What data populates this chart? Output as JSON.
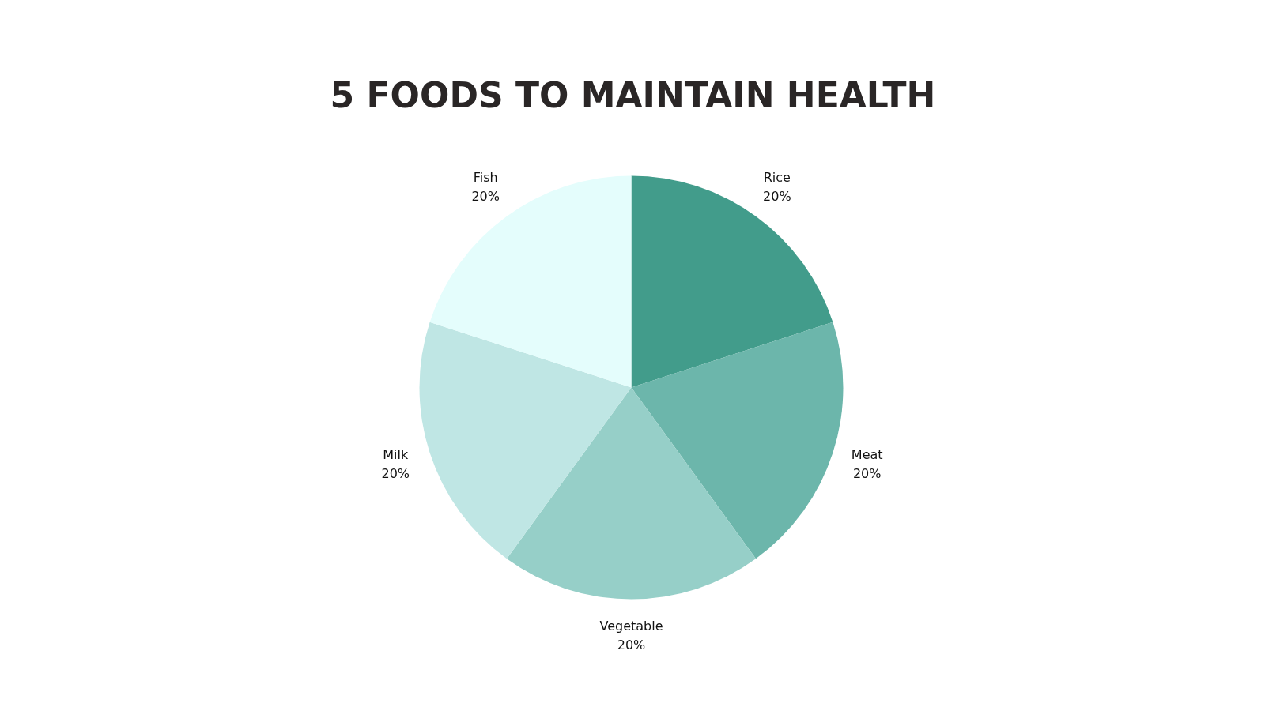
{
  "chart_data": {
    "type": "pie",
    "title": "5 FOODS TO MAINTAIN HEALTH",
    "categories": [
      "Rice",
      "Meat",
      "Vegetable",
      "Milk",
      "Fish"
    ],
    "values": [
      20,
      20,
      20,
      20,
      20
    ],
    "value_labels": [
      "20%",
      "20%",
      "20%",
      "20%",
      "20%"
    ],
    "colors": [
      "#429c8b",
      "#6cb6ab",
      "#96cfc8",
      "#bfe6e4",
      "#e4fdfc"
    ]
  }
}
